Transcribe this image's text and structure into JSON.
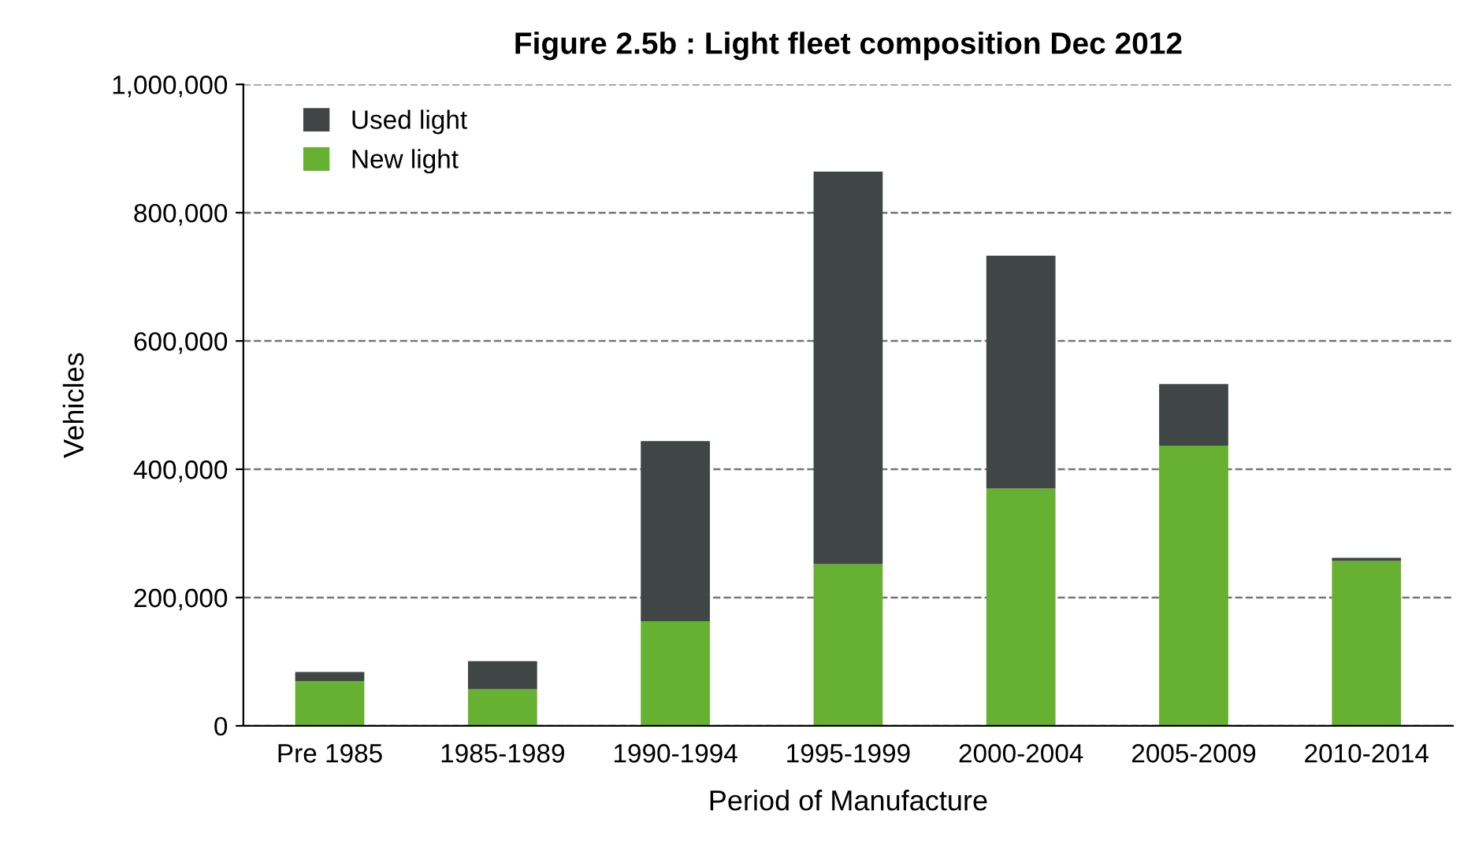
{
  "chart_data": {
    "type": "bar",
    "title": "Figure 2.5b : Light fleet composition Dec 2012",
    "xlabel": "Period of Manufacture",
    "ylabel": "Vehicles",
    "categories": [
      "Pre 1985",
      "1985-1989",
      "1990-1994",
      "1995-1999",
      "2000-2004",
      "2005-2009",
      "2010-2014"
    ],
    "stacked": true,
    "series": [
      {
        "name": "New light",
        "color": "#66b032",
        "values": [
          70000,
          57000,
          163000,
          252000,
          370000,
          437000,
          257000
        ]
      },
      {
        "name": "Used light",
        "color": "#404545",
        "values": [
          14000,
          44000,
          281000,
          612000,
          363000,
          96000,
          5000
        ]
      }
    ],
    "ylim": [
      0,
      1000000
    ],
    "yticks": [
      {
        "value": 0,
        "label": "0"
      },
      {
        "value": 200000,
        "label": "200,000"
      },
      {
        "value": 400000,
        "label": "400,000"
      },
      {
        "value": 600000,
        "label": "600,000"
      },
      {
        "value": 800000,
        "label": "800,000"
      },
      {
        "value": 1000000,
        "label": "1,000,000"
      }
    ],
    "grid": "y",
    "legend": "top left"
  }
}
